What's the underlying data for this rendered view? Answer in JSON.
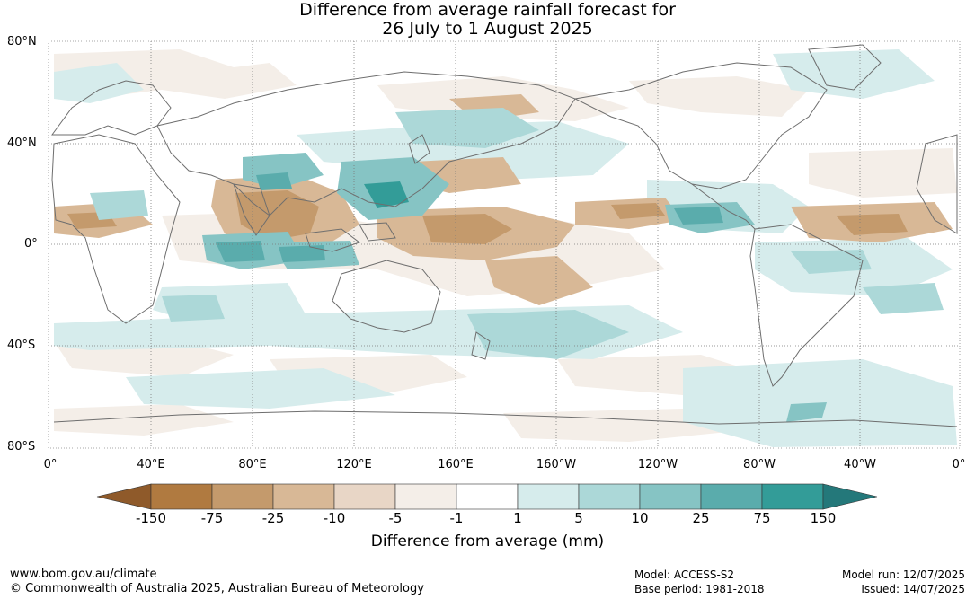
{
  "title_line1": "Difference from average rainfall forecast for",
  "title_line2": "26 July to 1 August 2025",
  "lat_ticks": [
    "80°N",
    "40°N",
    "0°",
    "40°S",
    "80°S"
  ],
  "lon_ticks": [
    "0°",
    "40°E",
    "80°E",
    "120°E",
    "160°E",
    "160°W",
    "120°W",
    "80°W",
    "40°W",
    "0°"
  ],
  "colorbar": {
    "title": "Difference from average (mm)",
    "labels": [
      "-150",
      "-75",
      "-25",
      "-10",
      "-5",
      "-1",
      "1",
      "5",
      "10",
      "25",
      "75",
      "150"
    ],
    "colors": [
      "#8f5a2a",
      "#b07a40",
      "#c49a6c",
      "#d8b896",
      "#e8d6c6",
      "#f4eee8",
      "#ffffff",
      "#d6ecec",
      "#acd8d8",
      "#86c4c4",
      "#5aacac",
      "#339c98",
      "#24787a"
    ]
  },
  "footer": {
    "website": "www.bom.gov.au/climate",
    "copyright": "© Commonwealth of Australia 2025, Australian Bureau of Meteorology",
    "model": "Model: ACCESS-S2",
    "base_period": "Base period: 1981-2018",
    "model_run": "Model run: 12/07/2025",
    "issued": "Issued: 14/07/2025"
  }
}
